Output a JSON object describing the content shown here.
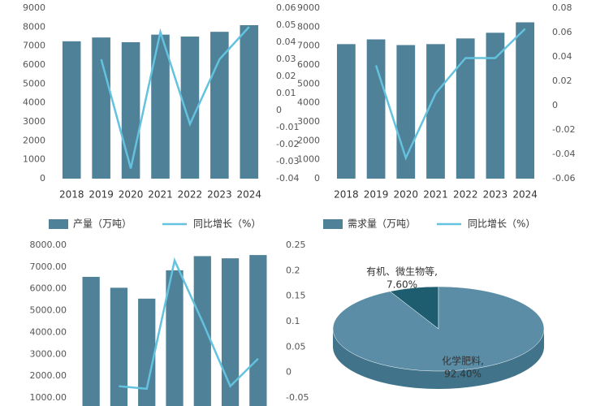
{
  "chart_data": [
    {
      "type": "bar-line",
      "categories": [
        "2018",
        "2019",
        "2020",
        "2021",
        "2022",
        "2023",
        "2024"
      ],
      "series": [
        {
          "name": "产量（万吨）",
          "color": "#4f8198",
          "values": [
            7250,
            7450,
            7200,
            7600,
            7500,
            7750,
            8100
          ]
        },
        {
          "name": "同比增长（%）",
          "color": "#63c2de",
          "axis": "y2",
          "values": [
            null,
            0.03,
            -0.034,
            0.046,
            -0.008,
            0.03,
            0.049
          ]
        }
      ],
      "ylim": [
        0,
        9000
      ],
      "yticks": [
        0,
        1000,
        2000,
        3000,
        4000,
        5000,
        6000,
        7000,
        8000,
        9000
      ],
      "y2lim": [
        -0.04,
        0.06
      ],
      "y2ticks": [
        -0.04,
        -0.03,
        -0.02,
        -0.01,
        0,
        0.01,
        0.02,
        0.03,
        0.04,
        0.05,
        0.06
      ]
    },
    {
      "type": "bar-line",
      "categories": [
        "2018",
        "2019",
        "2020",
        "2021",
        "2022",
        "2023",
        "2024"
      ],
      "series": [
        {
          "name": "需求量（万吨）",
          "color": "#4f8198",
          "values": [
            7100,
            7350,
            7050,
            7100,
            7400,
            7700,
            8250
          ]
        },
        {
          "name": "同比增长（%）",
          "color": "#63c2de",
          "axis": "y2",
          "values": [
            null,
            0.033,
            -0.043,
            0.01,
            0.039,
            0.039,
            0.063
          ]
        }
      ],
      "ylim": [
        0,
        9000
      ],
      "yticks": [
        0,
        1000,
        2000,
        3000,
        4000,
        5000,
        6000,
        7000,
        8000,
        9000
      ],
      "y2lim": [
        -0.06,
        0.08
      ],
      "y2ticks": [
        -0.06,
        -0.04,
        -0.02,
        0,
        0.02,
        0.04,
        0.06,
        0.08
      ]
    },
    {
      "type": "bar-line",
      "categories": [
        null,
        null,
        null,
        null,
        null,
        null,
        null
      ],
      "series": [
        {
          "color": "#4f8198",
          "values": [
            6550,
            6050,
            5550,
            6850,
            7500,
            7400,
            7550
          ]
        },
        {
          "color": "#63c2de",
          "axis": "y2",
          "values": [
            null,
            -0.027,
            -0.032,
            0.22,
            0.1,
            -0.027,
            0.027
          ]
        }
      ],
      "ylim": [
        1000,
        8000
      ],
      "yticks": [
        {
          "value": 1000,
          "label": "1000.00"
        },
        {
          "value": 2000,
          "label": "2000.00"
        },
        {
          "value": 3000,
          "label": "3000.00"
        },
        {
          "value": 4000,
          "label": "4000.00"
        },
        {
          "value": 5000,
          "label": "5000.00"
        },
        {
          "value": 6000,
          "label": "6000.00"
        },
        {
          "value": 7000,
          "label": "7000.00"
        },
        {
          "value": 8000,
          "label": "8000.00"
        }
      ],
      "y2lim": [
        -0.05,
        0.25
      ],
      "y2ticks": [
        -0.05,
        0,
        0.05,
        0.1,
        0.15,
        0.2,
        0.25
      ]
    },
    {
      "type": "pie",
      "categories": [
        "有机、微生物等,",
        "化学肥料,"
      ],
      "values": [
        7.6,
        92.4
      ],
      "value_labels": [
        "7.60%",
        "92.40%"
      ],
      "colors": [
        "#1e5d70",
        "#5b8ea6"
      ]
    }
  ]
}
